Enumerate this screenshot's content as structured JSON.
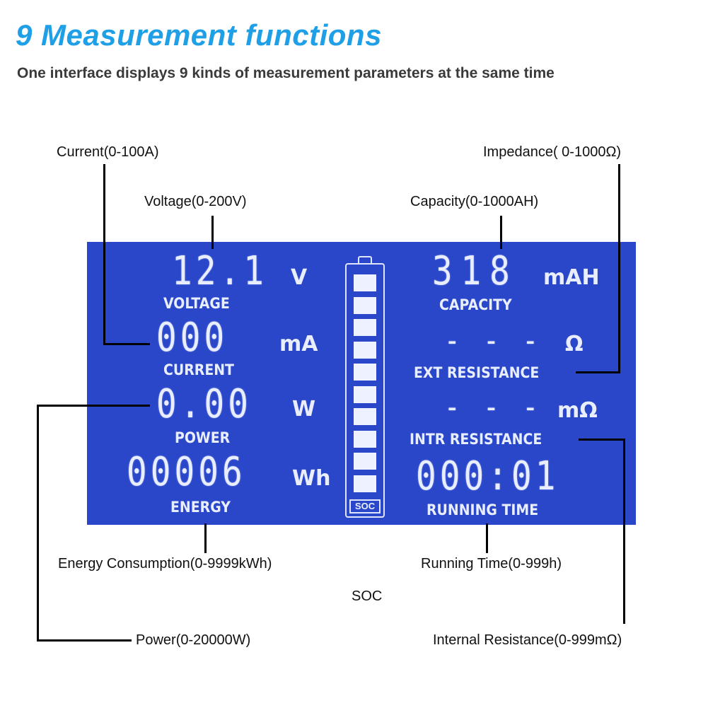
{
  "header": {
    "title": "9 Measurement functions",
    "subtitle": "One interface displays 9 kinds of measurement parameters at the same time"
  },
  "callouts": {
    "current": "Current(0-100A)",
    "impedance": "Impedance( 0-1000Ω)",
    "voltage": "Voltage(0-200V)",
    "capacity": "Capacity(0-1000AH)",
    "energy": "Energy Consumption(0-9999kWh)",
    "running_time": "Running Time(0-999h)",
    "soc": "SOC",
    "power": "Power(0-20000W)",
    "internal_resistance": "Internal Resistance(0-999mΩ)"
  },
  "lcd": {
    "voltage": {
      "value": "12.1",
      "unit": "V",
      "label": "VOLTAGE"
    },
    "current": {
      "value": "000",
      "unit": "mA",
      "label": "CURRENT"
    },
    "power": {
      "value": "0.00",
      "unit": "W",
      "label": "POWER"
    },
    "energy": {
      "value": "00006",
      "unit": "Wh",
      "label": "ENERGY"
    },
    "capacity": {
      "value": "318",
      "unit": "mAH",
      "label": "CAPACITY"
    },
    "ext_resistance": {
      "value": "- - -",
      "unit": "Ω",
      "label": "EXT RESISTANCE"
    },
    "intr_resistance": {
      "value": "- - -",
      "unit": "mΩ",
      "label": "INTR RESISTANCE"
    },
    "running_time": {
      "value": "000:01",
      "label": "RUNNING TIME"
    },
    "soc": {
      "label": "SOC",
      "segments_filled": 10,
      "segments_total": 10
    },
    "colors": {
      "background": "#2a47c9",
      "segment": "#e9eeff"
    }
  },
  "colors": {
    "title": "#1e9fe6"
  }
}
